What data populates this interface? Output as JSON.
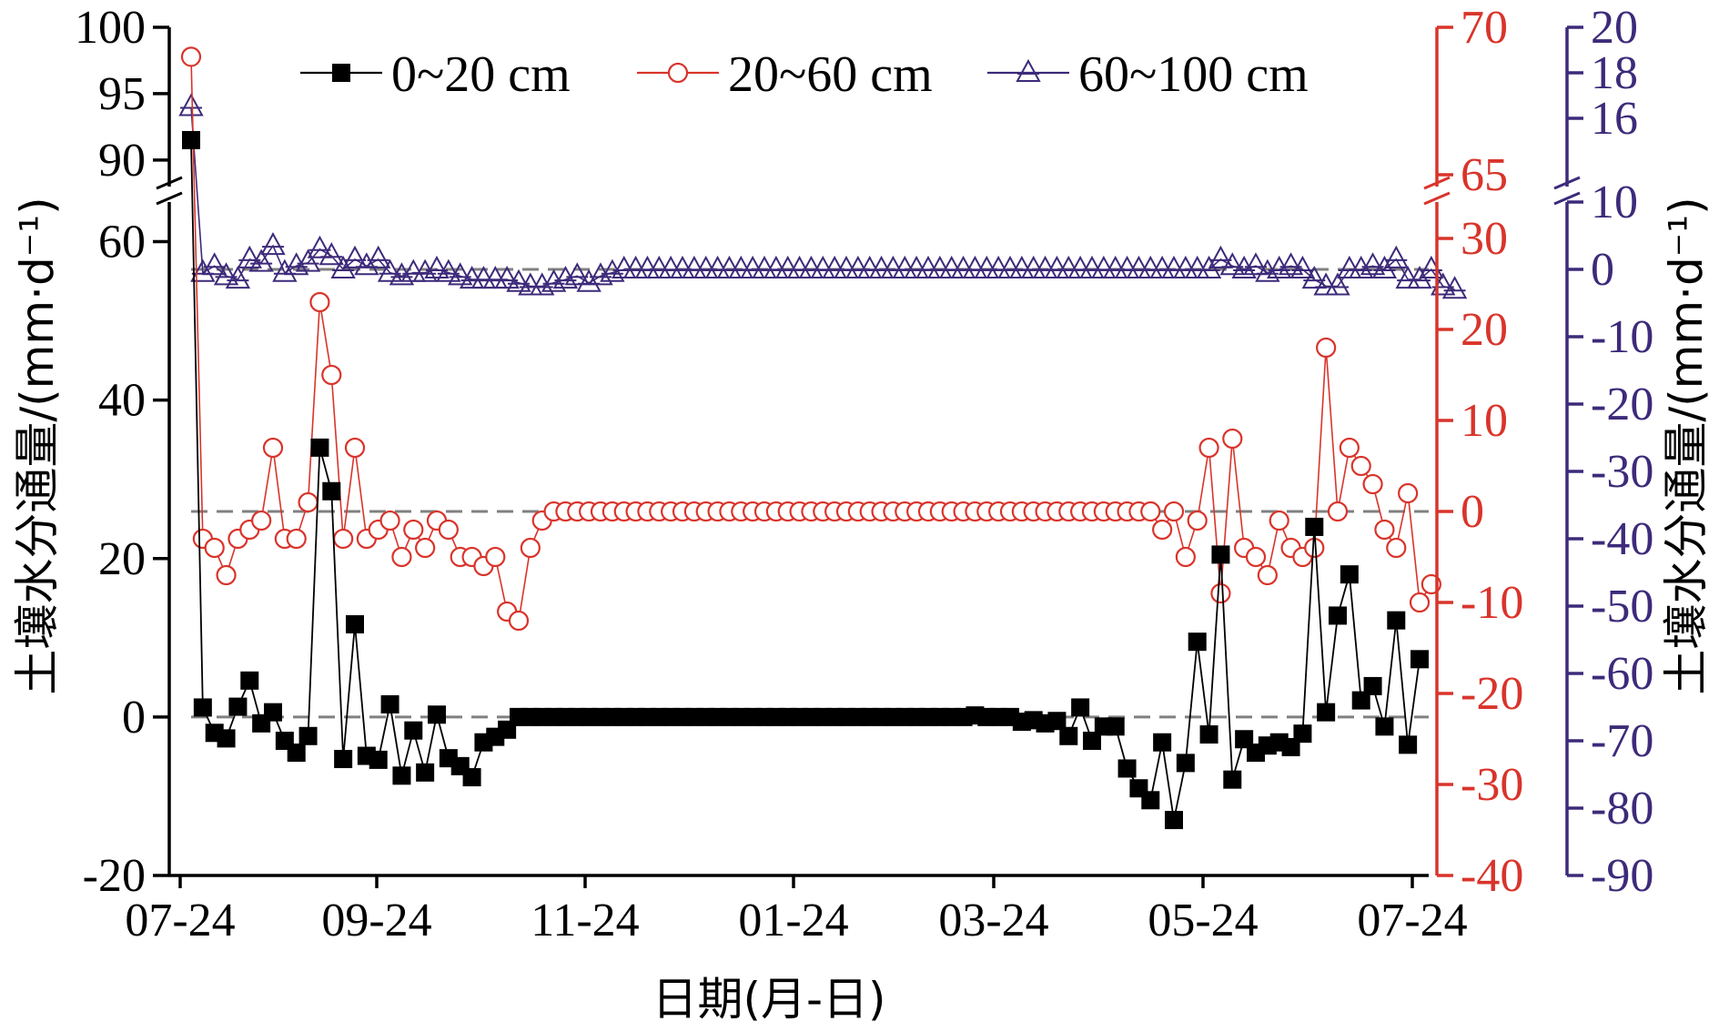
{
  "chart_data": {
    "type": "line",
    "xlabel": "日期(月-日)",
    "x_ticks": [
      "07-24",
      "09-24",
      "11-24",
      "01-24",
      "03-24",
      "05-24",
      "07-24"
    ],
    "left_axis": {
      "label": "土壤水分通量/(mm·d⁻¹)",
      "ticks_lower": [
        -20,
        0,
        20,
        40,
        60
      ],
      "ticks_upper": [
        90,
        95,
        100
      ],
      "range_lower": [
        -20,
        65
      ],
      "range_upper": [
        88,
        100
      ],
      "color": "#000000"
    },
    "right_axis_1": {
      "ticks_lower": [
        -40,
        -30,
        -20,
        -10,
        0,
        10,
        20,
        30
      ],
      "ticks_upper": [
        65,
        70
      ],
      "range_lower": [
        -40,
        34
      ],
      "range_upper": [
        64.6,
        70
      ],
      "color": "#d9342b"
    },
    "right_axis_2": {
      "label": "土壤水分通量/(mm·d⁻¹)",
      "ticks_lower": [
        -90,
        -80,
        -70,
        -60,
        -50,
        -40,
        -30,
        -20,
        -10,
        0,
        10
      ],
      "ticks_upper": [
        16,
        18,
        20
      ],
      "range_lower": [
        -90,
        10
      ],
      "range_upper": [
        13,
        20
      ],
      "color": "#3d2a7a"
    },
    "legend_position": "top",
    "grid": false,
    "series": [
      {
        "name": "0~20 cm",
        "color": "#000000",
        "marker": "square-filled",
        "axis": "left",
        "values": [
          91.5,
          1.2,
          -2,
          -2.7,
          1.3,
          4.6,
          -0.8,
          0.6,
          -3,
          -4.5,
          -2.4,
          34,
          28.5,
          -5.3,
          11.7,
          -4.9,
          -5.4,
          1.6,
          -7.4,
          -1.7,
          -7,
          0.3,
          -5.2,
          -6.2,
          -7.6,
          -3.2,
          -2.5,
          -1.6,
          0,
          0,
          0,
          0,
          0,
          0,
          0,
          0,
          0,
          0,
          0,
          0,
          0,
          0,
          0,
          0,
          0,
          0,
          0,
          0,
          0,
          0,
          0,
          0,
          0,
          0,
          0,
          0,
          0,
          0,
          0,
          0,
          0,
          0,
          0,
          0,
          0,
          0,
          0,
          0.2,
          0,
          0,
          0,
          -0.6,
          -0.4,
          -0.8,
          -0.5,
          -2.4,
          1.2,
          -3,
          -1.2,
          -1.2,
          -6.5,
          -9,
          -10.5,
          -3.2,
          -13,
          -5.8,
          9.5,
          -2.2,
          20.5,
          -7.9,
          -2.8,
          -4.5,
          -3.6,
          -3.2,
          -3.8,
          -2.1,
          24,
          0.6,
          12.8,
          18,
          2.1,
          3.9,
          -1.2,
          12.2,
          -3.5,
          7.3
        ]
      },
      {
        "name": "20~60 cm",
        "color": "#d9342b",
        "marker": "circle-open",
        "axis": "right_1",
        "values": [
          69,
          -3,
          -4,
          -7,
          -3,
          -2,
          -1,
          7,
          -3,
          -3,
          1,
          23,
          15,
          -3,
          7,
          -3,
          -2,
          -1,
          -5,
          -2,
          -4,
          -1,
          -2,
          -5,
          -5,
          -6,
          -5,
          -11,
          -12,
          -4,
          -1,
          0,
          0,
          0,
          0,
          0,
          0,
          0,
          0,
          0,
          0,
          0,
          0,
          0,
          0,
          0,
          0,
          0,
          0,
          0,
          0,
          0,
          0,
          0,
          0,
          0,
          0,
          0,
          0,
          0,
          0,
          0,
          0,
          0,
          0,
          0,
          0,
          0,
          0,
          0,
          0,
          0,
          0,
          0,
          0,
          0,
          0,
          0,
          0,
          0,
          0,
          0,
          0,
          -2,
          0,
          -5,
          -1,
          7,
          -9,
          8,
          -4,
          -5,
          -7,
          -1,
          -4,
          -5,
          -4,
          18,
          0,
          7,
          5,
          3,
          -2,
          -4,
          2,
          -10,
          -8
        ]
      },
      {
        "name": "60~100 cm",
        "color": "#3d2a7a",
        "marker": "triangle-open",
        "axis": "right_2",
        "values": [
          16.5,
          -0.5,
          0.5,
          -1,
          -1.5,
          1.5,
          1,
          3.5,
          -0.5,
          0.5,
          1,
          3,
          2,
          0,
          1.5,
          0.5,
          1.5,
          -0.5,
          -1,
          -0.5,
          -0.5,
          0,
          -0.5,
          -1,
          -1.5,
          -1.5,
          -1.5,
          -1.5,
          -2,
          -2.5,
          -2.5,
          -2,
          -1.5,
          -1,
          -2,
          -1,
          -0.5,
          0,
          0,
          0,
          0,
          0,
          0,
          0,
          0,
          0,
          0,
          0,
          0,
          0,
          0,
          0,
          0,
          0,
          0,
          0,
          0,
          0,
          0,
          0,
          0,
          0,
          0,
          0,
          0,
          0,
          0,
          0,
          0,
          0,
          0,
          0,
          0,
          0,
          0,
          0,
          0,
          0,
          0,
          0,
          0,
          0,
          0,
          0,
          0,
          0,
          0,
          0,
          1.5,
          0.5,
          0,
          0.5,
          -0.5,
          0,
          0.5,
          0,
          -1.5,
          -2.5,
          -2.5,
          0,
          0,
          0.5,
          0,
          1.5,
          -1.5,
          -1.5,
          0,
          -2.5,
          -3
        ]
      }
    ],
    "reference_lines": [
      {
        "axis": "left",
        "value": 0,
        "color": "#808080",
        "style": "dashed"
      },
      {
        "axis": "right_1",
        "value": 0,
        "color": "#808080",
        "style": "dashed"
      },
      {
        "axis": "right_2",
        "value": 0,
        "color": "#808080",
        "style": "dashed"
      }
    ]
  }
}
